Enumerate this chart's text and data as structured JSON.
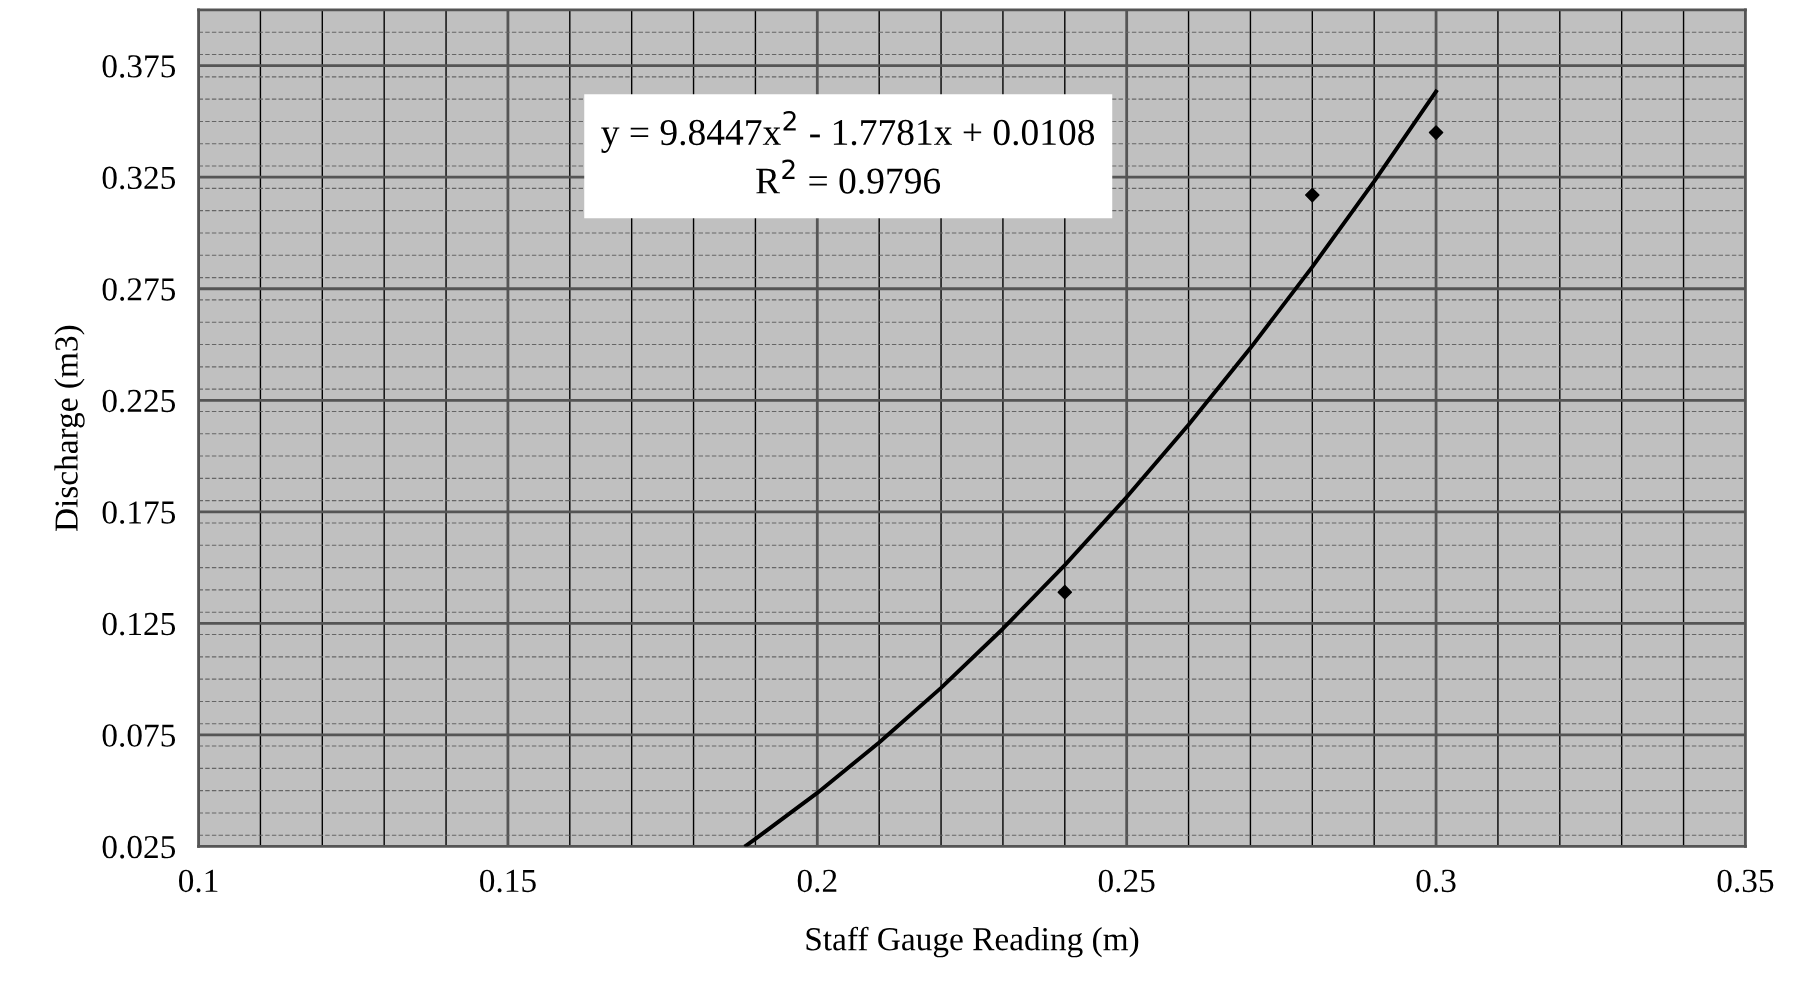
{
  "chart_data": {
    "type": "scatter",
    "xlabel": "Staff Gauge Reading (m)",
    "ylabel": "Discharge (m3)",
    "xlim": [
      0.1,
      0.35
    ],
    "xticks": [
      0.1,
      0.15,
      0.2,
      0.25,
      0.3,
      0.35
    ],
    "ylim": [
      0.025,
      0.4
    ],
    "yticks": [
      0.025,
      0.075,
      0.125,
      0.175,
      0.225,
      0.275,
      0.325,
      0.375
    ],
    "grid": true,
    "marker": "diamond",
    "legend": false,
    "annotations": [
      "y = 9.8447x$^{2}$ - 1.7781x + 0.0108\nR$^{2}$ = 0.9796"
    ],
    "series": [
      {
        "color": "#000000",
        "x": [
          0.24,
          0.28,
          0.3
        ],
        "values": [
          0.139,
          0.317,
          0.345
        ]
      },
      {
        "type": "line",
        "color": "#000000",
        "marker": "none",
        "line_style": "solid",
        "x": [
          0.1885,
          0.19,
          0.2,
          0.21,
          0.22,
          0.23,
          0.24,
          0.25,
          0.26,
          0.27,
          0.28,
          0.29,
          0.3
        ],
        "values": [
          0.0254,
          0.0284,
          0.049,
          0.0716,
          0.0961,
          0.1226,
          0.1511,
          0.1816,
          0.214,
          0.2484,
          0.2848,
          0.3231,
          0.3634
        ]
      }
    ]
  }
}
